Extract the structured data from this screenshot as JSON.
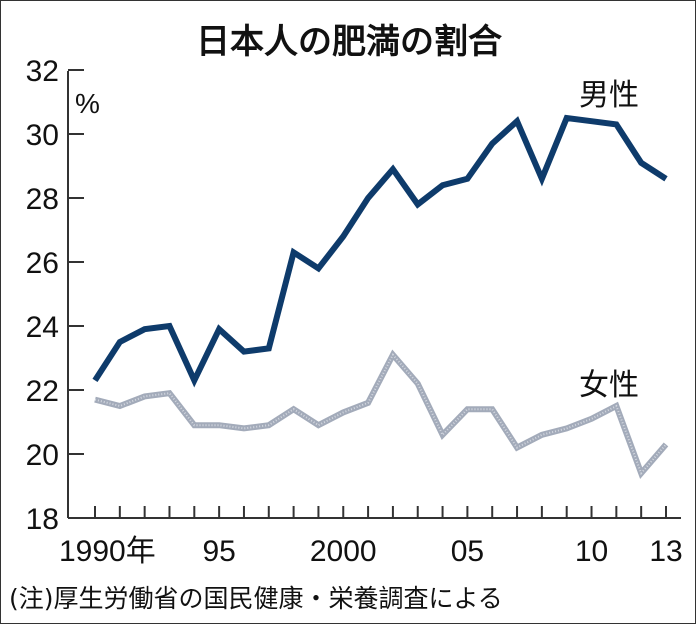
{
  "chart_data": {
    "type": "line",
    "title": "日本人の肥満の割合",
    "ylabel": "%",
    "xlabel": "",
    "ylim": [
      18,
      32
    ],
    "yticks": [
      "18",
      "20",
      "22",
      "24",
      "26",
      "28",
      "30",
      "32"
    ],
    "x": [
      1990,
      1991,
      1992,
      1993,
      1994,
      1995,
      1996,
      1997,
      1998,
      1999,
      2000,
      2001,
      2002,
      2003,
      2004,
      2005,
      2006,
      2007,
      2008,
      2009,
      2010,
      2011,
      2012,
      2013
    ],
    "xtick_labels": [
      {
        "year": 1990,
        "label": "1990年"
      },
      {
        "year": 1995,
        "label": "95"
      },
      {
        "year": 2000,
        "label": "2000"
      },
      {
        "year": 2005,
        "label": "05"
      },
      {
        "year": 2010,
        "label": "10"
      },
      {
        "year": 2013,
        "label": "13"
      }
    ],
    "series": [
      {
        "name": "男性",
        "color": "#0e3b6b",
        "values": [
          22.3,
          23.5,
          23.9,
          24.0,
          22.3,
          23.9,
          23.2,
          23.3,
          26.3,
          25.8,
          26.8,
          28.0,
          28.9,
          27.8,
          28.4,
          28.6,
          29.7,
          30.4,
          28.6,
          30.5,
          30.4,
          30.3,
          29.1,
          28.6
        ]
      },
      {
        "name": "女性",
        "color": "#a3abba",
        "values": [
          21.7,
          21.5,
          21.8,
          21.9,
          20.9,
          20.9,
          20.8,
          20.9,
          21.4,
          20.9,
          21.3,
          21.6,
          23.1,
          22.2,
          20.6,
          21.4,
          21.4,
          20.2,
          20.6,
          20.8,
          21.1,
          21.5,
          19.4,
          20.3
        ]
      }
    ],
    "grid": false,
    "legend": "direct labels"
  },
  "footnote": "(注)厚生労働省の国民健康・栄養調査による"
}
